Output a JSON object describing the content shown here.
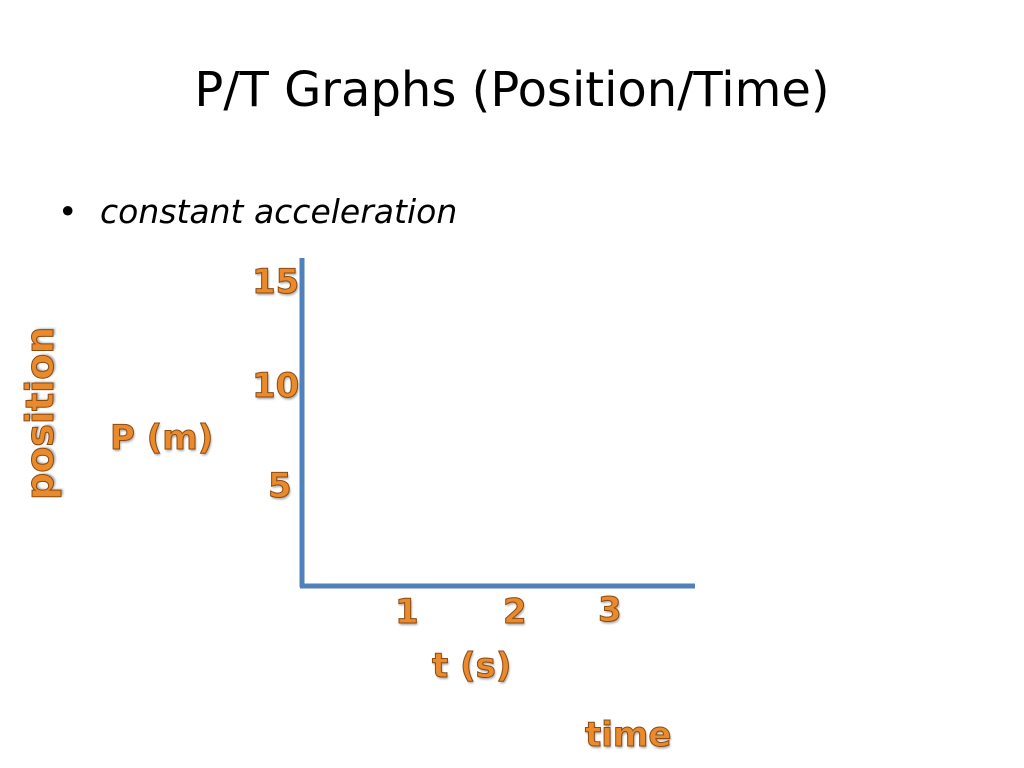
{
  "slide": {
    "title": "P/T Graphs (Position/Time)",
    "bullet_symbol": "•",
    "bullet_text": "constant acceleration"
  },
  "colors": {
    "axis": "#4F81BD",
    "label_fill": "#E98A2C",
    "label_outline": "#8B4A10"
  },
  "chart_data": {
    "type": "line",
    "title": "",
    "xlabel": "t (s)",
    "ylabel": "P (m)",
    "y_ticks": [
      "15",
      "10",
      "5"
    ],
    "x_ticks": [
      "1",
      "2",
      "3"
    ],
    "series": []
  },
  "annotations": {
    "vertical_word": "position",
    "horizontal_word": "time"
  }
}
